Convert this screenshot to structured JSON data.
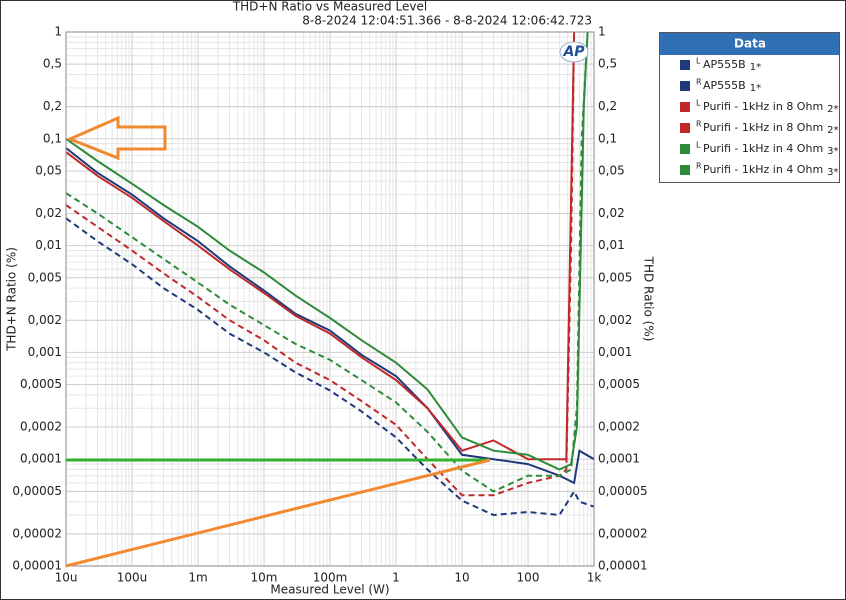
{
  "chart_data": {
    "type": "line",
    "title": "THD+N Ratio vs Measured Level",
    "subtitle": "8-8-2024 12:04:51.366 - 8-8-2024 12:06:42.723",
    "xlabel": "Measured Level (W)",
    "ylabel": "THD+N Ratio (%)",
    "y2label": "THD Ratio (%)",
    "logo": "AP",
    "legend_title": "Data",
    "log_x": true,
    "log_y": true,
    "grid": true,
    "xlim": [
      1e-05,
      1000
    ],
    "ylim": [
      1e-05,
      1
    ],
    "xticks": [
      {
        "value": 1e-05,
        "label": "10u"
      },
      {
        "value": 0.0001,
        "label": "100u"
      },
      {
        "value": 0.001,
        "label": "1m"
      },
      {
        "value": 0.01,
        "label": "10m"
      },
      {
        "value": 0.1,
        "label": "100m"
      },
      1,
      10,
      100,
      {
        "value": 1000,
        "label": "1k"
      }
    ],
    "yticks": [
      1,
      {
        "value": 0.5,
        "label": "0,5"
      },
      {
        "value": 0.2,
        "label": "0,2"
      },
      {
        "value": 0.1,
        "label": "0,1"
      },
      {
        "value": 0.05,
        "label": "0,05"
      },
      {
        "value": 0.02,
        "label": "0,02"
      },
      {
        "value": 0.01,
        "label": "0,01"
      },
      {
        "value": 0.005,
        "label": "0,005"
      },
      {
        "value": 0.002,
        "label": "0,002"
      },
      {
        "value": 0.001,
        "label": "0,001"
      },
      {
        "value": 0.0005,
        "label": "0,0005"
      },
      {
        "value": 0.0002,
        "label": "0,0002"
      },
      {
        "value": 0.0001,
        "label": "0,0001"
      },
      {
        "value": 5e-05,
        "label": "0,00005"
      },
      {
        "value": 2e-05,
        "label": "0,00002"
      },
      {
        "value": 1e-05,
        "label": "0,00001"
      }
    ],
    "series": [
      {
        "channel": "L",
        "name": "AP555B",
        "tag": "1*",
        "color": "#1f3a7a",
        "style": "solid",
        "x": [
          1e-05,
          3e-05,
          0.0001,
          0.0003,
          0.001,
          0.003,
          0.01,
          0.03,
          0.1,
          0.3,
          1,
          3,
          10,
          30,
          100,
          300,
          500,
          600,
          1000
        ],
        "values": [
          0.082,
          0.048,
          0.03,
          0.018,
          0.011,
          0.0064,
          0.0038,
          0.0023,
          0.0016,
          0.00095,
          0.0006,
          0.0003,
          0.00011,
          0.0001,
          9e-05,
          7e-05,
          6e-05,
          0.00012,
          0.0001
        ]
      },
      {
        "channel": "R",
        "name": "AP555B",
        "tag": "1*",
        "color": "#1f3a7a",
        "style": "dashed",
        "x": [
          1e-05,
          3e-05,
          0.0001,
          0.0003,
          0.001,
          0.003,
          0.01,
          0.03,
          0.1,
          0.3,
          1,
          3,
          10,
          30,
          100,
          300,
          500,
          600,
          1000
        ],
        "values": [
          0.018,
          0.011,
          0.0067,
          0.004,
          0.0025,
          0.0015,
          0.001,
          0.00065,
          0.00044,
          0.00028,
          0.00016,
          8e-05,
          4.1e-05,
          3e-05,
          3.2e-05,
          3e-05,
          5e-05,
          4e-05,
          3.6e-05
        ]
      },
      {
        "channel": "L",
        "name": "Purifi - 1kHz in 8 Ohm",
        "tag": "2*",
        "color": "#c0282a",
        "style": "solid",
        "x": [
          1e-05,
          3e-05,
          0.0001,
          0.0003,
          0.001,
          0.003,
          0.01,
          0.03,
          0.1,
          0.3,
          1,
          3,
          10,
          30,
          100,
          300,
          380,
          500
        ],
        "values": [
          0.075,
          0.045,
          0.028,
          0.017,
          0.01,
          0.006,
          0.0036,
          0.0022,
          0.0015,
          0.0009,
          0.00055,
          0.0003,
          0.00012,
          0.00015,
          0.0001,
          0.0001,
          0.0001,
          1
        ]
      },
      {
        "channel": "R",
        "name": "Purifi - 1kHz in 8 Ohm",
        "tag": "2*",
        "color": "#c0282a",
        "style": "dashed",
        "x": [
          1e-05,
          3e-05,
          0.0001,
          0.0003,
          0.001,
          0.003,
          0.01,
          0.03,
          0.1,
          0.3,
          1,
          3,
          10,
          30,
          100,
          300,
          380,
          450,
          500
        ],
        "values": [
          0.024,
          0.015,
          0.009,
          0.0055,
          0.0033,
          0.002,
          0.0013,
          0.0008,
          0.00055,
          0.00035,
          0.00021,
          0.0001,
          4.6e-05,
          4.6e-05,
          6e-05,
          7e-05,
          8e-05,
          0.01,
          1
        ]
      },
      {
        "channel": "L",
        "name": "Purifi - 1kHz in 4 Ohm",
        "tag": "3*",
        "color": "#2e8b3a",
        "style": "solid",
        "x": [
          1e-05,
          3e-05,
          0.0001,
          0.0003,
          0.001,
          0.003,
          0.01,
          0.03,
          0.1,
          0.3,
          1,
          3,
          10,
          30,
          100,
          300,
          450,
          550,
          700,
          800
        ],
        "values": [
          0.1,
          0.062,
          0.038,
          0.024,
          0.015,
          0.009,
          0.0056,
          0.0034,
          0.0021,
          0.0013,
          0.0008,
          0.00045,
          0.00016,
          0.00012,
          0.00011,
          8e-05,
          9e-05,
          0.0002,
          0.2,
          1
        ]
      },
      {
        "channel": "R",
        "name": "Purifi - 1kHz in 4 Ohm",
        "tag": "3*",
        "color": "#2e8b3a",
        "style": "dashed",
        "x": [
          1e-05,
          3e-05,
          0.0001,
          0.0003,
          0.001,
          0.003,
          0.01,
          0.03,
          0.1,
          0.3,
          1,
          3,
          10,
          30,
          100,
          300,
          450,
          550,
          650,
          800
        ],
        "values": [
          0.031,
          0.02,
          0.012,
          0.0075,
          0.0045,
          0.0028,
          0.0018,
          0.0012,
          0.00085,
          0.00055,
          0.00034,
          0.00018,
          7.8e-05,
          5e-05,
          7e-05,
          7e-05,
          8e-05,
          0.0003,
          0.1,
          1
        ]
      }
    ]
  }
}
